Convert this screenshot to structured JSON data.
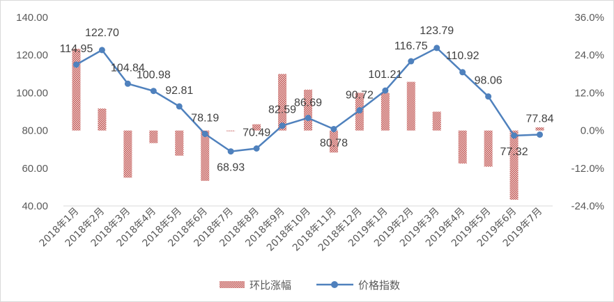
{
  "chart_data": {
    "type": "bar+line",
    "categories": [
      "2018年1月",
      "2018年2月",
      "2018年3月",
      "2018年4月",
      "2018年5月",
      "2018年6月",
      "2018年7月",
      "2018年8月",
      "2018年9月",
      "2018年10月",
      "2018年11月",
      "2018年12月",
      "2019年1月",
      "2019年2月",
      "2019年3月",
      "2019年4月",
      "2019年5月",
      "2019年6月",
      "2019年7月"
    ],
    "series": [
      {
        "name": "环比涨幅",
        "type": "bar",
        "axis": "right",
        "color": "#c0504d",
        "pattern": "crosshatch",
        "values": [
          26.0,
          7.0,
          -15.0,
          -4.0,
          -8.0,
          -16.0,
          0.0,
          2.0,
          18.0,
          13.0,
          -7.0,
          12.0,
          12.0,
          15.5,
          6.0,
          -10.5,
          -11.5,
          -22.0,
          1.0
        ]
      },
      {
        "name": "价格指数",
        "type": "line",
        "axis": "left",
        "color": "#4f81bd",
        "values": [
          114.95,
          122.7,
          104.84,
          100.98,
          92.81,
          78.19,
          68.93,
          70.49,
          82.59,
          86.69,
          80.78,
          90.72,
          101.21,
          116.75,
          123.79,
          110.92,
          98.06,
          77.32,
          77.84
        ]
      }
    ],
    "data_labels": [
      "114.95",
      "122.70",
      "104.84",
      "100.98",
      "92.81",
      "78.19",
      "68.93",
      "70.49",
      "82.59",
      "86.69",
      "80.78",
      "90.72",
      "101.21",
      "116.75",
      "123.79",
      "110.92",
      "98.06",
      "77.32",
      "77.84"
    ],
    "left_axis": {
      "ylim": [
        40,
        140
      ],
      "ticks": [
        "40.00",
        "60.00",
        "80.00",
        "100.00",
        "120.00",
        "140.00"
      ]
    },
    "right_axis": {
      "ylim": [
        -24,
        36
      ],
      "ticks": [
        "-24.0%",
        "-12.0%",
        "0.0%",
        "12.0%",
        "24.0%",
        "36.0%"
      ]
    },
    "legend_position": "bottom",
    "grid": false
  }
}
